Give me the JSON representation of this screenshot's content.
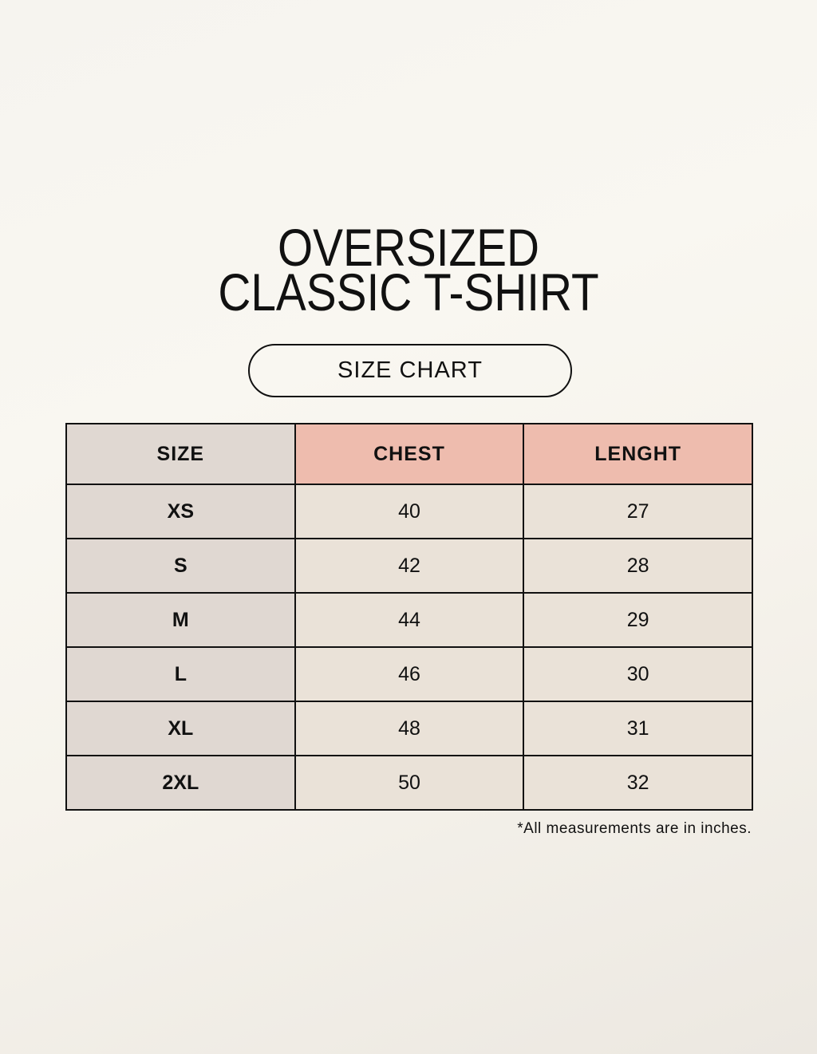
{
  "title": {
    "line1": "OVERSIZED",
    "line2": "CLASSIC T-SHIRT"
  },
  "badge": "SIZE CHART",
  "table": {
    "headers": [
      "SIZE",
      "CHEST",
      "LENGHT"
    ],
    "rows": [
      [
        "XS",
        "40",
        "27"
      ],
      [
        "S",
        "42",
        "28"
      ],
      [
        "M",
        "44",
        "29"
      ],
      [
        "L",
        "46",
        "30"
      ],
      [
        "XL",
        "48",
        "31"
      ],
      [
        "2XL",
        "50",
        "32"
      ]
    ]
  },
  "note": "*All measurements are in inches.",
  "colors": {
    "size_column": "#e0d8d2",
    "header_accent": "#eebcae",
    "cell": "#eae2d8"
  }
}
